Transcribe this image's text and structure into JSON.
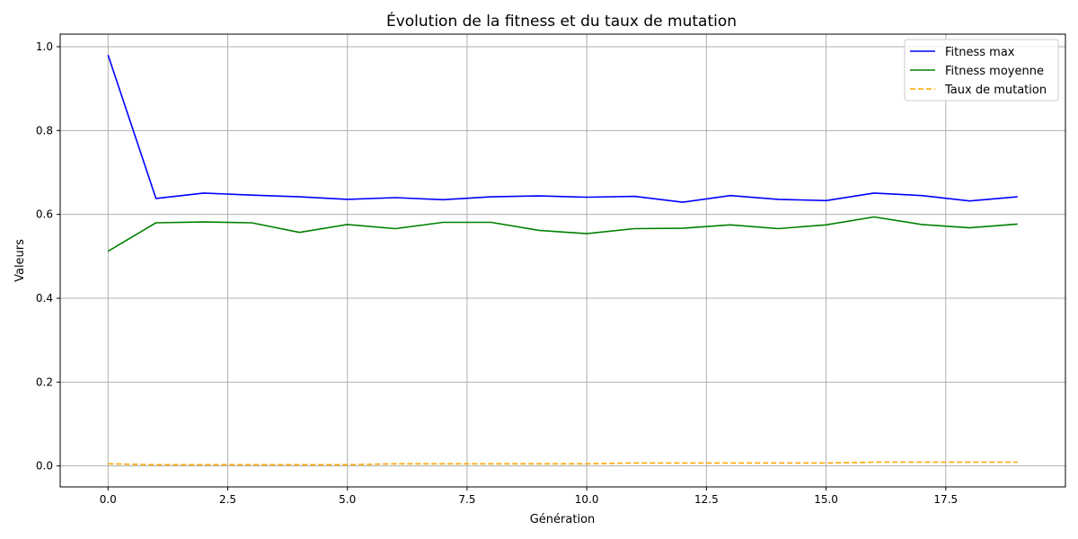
{
  "chart_data": {
    "type": "line",
    "title": "Évolution de la fitness et du taux de mutation",
    "xlabel": "Génération",
    "ylabel": "Valeurs",
    "xlim": [
      -1,
      20
    ],
    "ylim": [
      -0.05,
      1.03
    ],
    "x_ticks": [
      0,
      2.5,
      5,
      7.5,
      10,
      12.5,
      15,
      17.5
    ],
    "x_tick_labels": [
      "0.0",
      "2.5",
      "5.0",
      "7.5",
      "10.0",
      "12.5",
      "15.0",
      "17.5"
    ],
    "y_ticks": [
      0,
      0.2,
      0.4,
      0.6,
      0.8,
      1.0
    ],
    "y_tick_labels": [
      "0.0",
      "0.2",
      "0.4",
      "0.6",
      "0.8",
      "1.0"
    ],
    "grid": true,
    "legend_position": "top-right",
    "x": [
      0,
      1,
      2,
      3,
      4,
      5,
      6,
      7,
      8,
      9,
      10,
      11,
      12,
      13,
      14,
      15,
      16,
      17,
      18,
      19
    ],
    "series": [
      {
        "name": "Fitness max",
        "color": "#0000ff",
        "style": "solid",
        "values": [
          0.98,
          0.638,
          0.651,
          0.646,
          0.642,
          0.636,
          0.64,
          0.635,
          0.642,
          0.644,
          0.641,
          0.643,
          0.629,
          0.645,
          0.636,
          0.633,
          0.651,
          0.645,
          0.632,
          0.642
        ]
      },
      {
        "name": "Fitness moyenne",
        "color": "#008000",
        "style": "solid",
        "values": [
          0.512,
          0.58,
          0.582,
          0.58,
          0.557,
          0.576,
          0.566,
          0.581,
          0.581,
          0.562,
          0.554,
          0.566,
          0.567,
          0.575,
          0.566,
          0.575,
          0.594,
          0.576,
          0.568,
          0.577
        ]
      },
      {
        "name": "Taux de mutation",
        "color": "#ffa500",
        "style": "dashed",
        "values": [
          0.005,
          0.003,
          0.003,
          0.003,
          0.003,
          0.003,
          0.005,
          0.005,
          0.005,
          0.005,
          0.005,
          0.007,
          0.007,
          0.007,
          0.007,
          0.007,
          0.009,
          0.009,
          0.009,
          0.009
        ]
      }
    ]
  }
}
